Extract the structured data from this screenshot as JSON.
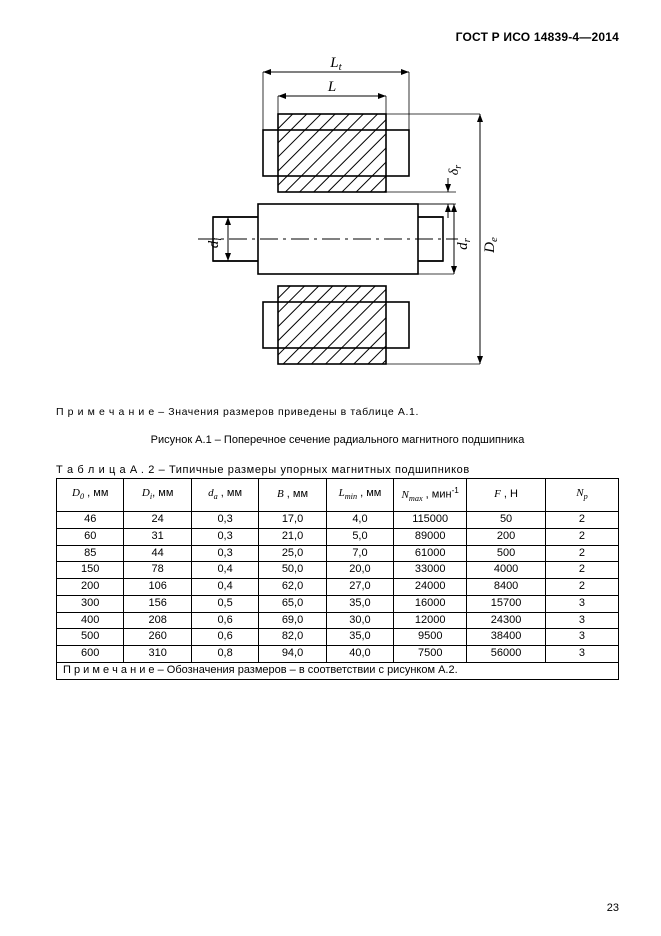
{
  "doc_id": "ГОСТ Р ИСО 14839-4—2014",
  "figure_note": "П р и м е ч а н и е  –  Значения размеров приведены в таблице A.1.",
  "figure_caption": "Рисунок A.1 – Поперечное сечение радиального магнитного подшипника",
  "table_caption": "Т а б л и ц а  A . 2  –  Типичные размеры упорных магнитных подшипников",
  "page_number": "23",
  "dims": {
    "Lt": "L",
    "Lt_sub": "t",
    "L": "L",
    "di": "d",
    "di_sub": "i",
    "dr": "d",
    "dr_sub": "r",
    "De": "D",
    "De_sub": "e",
    "delta": "δ",
    "delta_sub": "r"
  },
  "table": {
    "headers": {
      "D0": {
        "sym": "D",
        "sub": "0",
        "unit": " , мм"
      },
      "Di": {
        "sym": "D",
        "sub": "i",
        "unit": ", мм"
      },
      "da": {
        "sym": "d",
        "sub": "a",
        "unit": " , мм"
      },
      "B": {
        "sym": "B",
        "sub": "",
        "unit": " , мм"
      },
      "Lmin": {
        "sym": "L",
        "sub": "min",
        "unit": " , мм"
      },
      "Nmax": {
        "sym": "N",
        "sub": "max",
        "unit": " , мин",
        "unit_sup": "-1"
      },
      "F": {
        "sym": "F",
        "sub": "",
        "unit": " , Н"
      },
      "Np": {
        "sym": "N",
        "sub": "p",
        "unit": ""
      }
    },
    "rows": [
      [
        "46",
        "24",
        "0,3",
        "17,0",
        "4,0",
        "115000",
        "50",
        "2"
      ],
      [
        "60",
        "31",
        "0,3",
        "21,0",
        "5,0",
        "89000",
        "200",
        "2"
      ],
      [
        "85",
        "44",
        "0,3",
        "25,0",
        "7,0",
        "61000",
        "500",
        "2"
      ],
      [
        "150",
        "78",
        "0,4",
        "50,0",
        "20,0",
        "33000",
        "4000",
        "2"
      ],
      [
        "200",
        "106",
        "0,4",
        "62,0",
        "27,0",
        "24000",
        "8400",
        "2"
      ],
      [
        "300",
        "156",
        "0,5",
        "65,0",
        "35,0",
        "16000",
        "15700",
        "3"
      ],
      [
        "400",
        "208",
        "0,6",
        "69,0",
        "30,0",
        "12000",
        "24300",
        "3"
      ],
      [
        "500",
        "260",
        "0,6",
        "82,0",
        "35,0",
        "9500",
        "38400",
        "3"
      ],
      [
        "600",
        "310",
        "0,8",
        "94,0",
        "40,0",
        "7500",
        "56000",
        "3"
      ]
    ],
    "footnote": "П р и м е ч а н и е – Обозначения размеров – в соответствии с рисунком A.2."
  },
  "style": {
    "hatch_color": "#000000",
    "line_color": "#000000",
    "bg": "#ffffff",
    "col_widths_pct": [
      12,
      12,
      12,
      12,
      12,
      13,
      14,
      13
    ]
  }
}
